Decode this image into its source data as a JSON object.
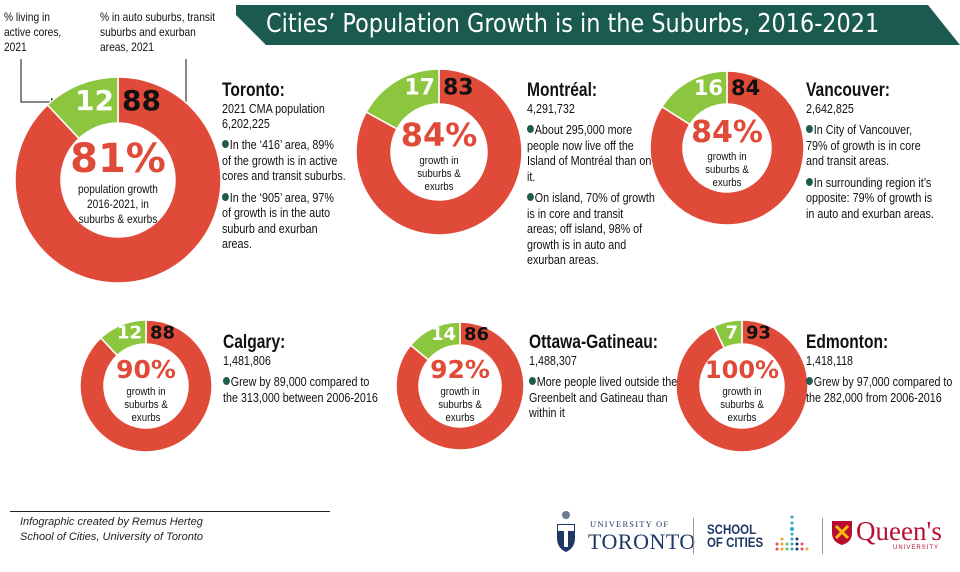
{
  "title": "Cities’ Population Growth is in the Suburbs, 2016-2021",
  "colors": {
    "banner": "#1b5b4f",
    "suburb_red": "#e04a38",
    "core_green": "#8cc63f",
    "bullet_dot": "#1f5b4e"
  },
  "annotations": {
    "core_label": [
      "% living in",
      "active cores,",
      "2021"
    ],
    "suburb_label": [
      "% in auto suburbs, transit",
      "suburbs and exurban",
      "areas, 2021"
    ]
  },
  "chart_data": {
    "type": "pie",
    "title": "Cities’ Population Growth is in the Suburbs, 2016-2021",
    "legend": [
      "% living in active cores, 2021",
      "% in auto suburbs, transit suburbs and exurban areas, 2021"
    ],
    "charts": [
      {
        "city": "Toronto",
        "core": 12,
        "suburban": 88,
        "growth_pct": "81%",
        "growth_caption": [
          "population growth",
          "2016-2021, in",
          "suburbs & exurbs"
        ]
      },
      {
        "city": "Montréal",
        "core": 17,
        "suburban": 83,
        "growth_pct": "84%",
        "growth_caption": [
          "growth in",
          "suburbs &",
          "exurbs"
        ]
      },
      {
        "city": "Vancouver",
        "core": 16,
        "suburban": 84,
        "growth_pct": "84%",
        "growth_caption": [
          "growth in",
          "suburbs &",
          "exurbs"
        ]
      },
      {
        "city": "Calgary",
        "core": 12,
        "suburban": 88,
        "growth_pct": "90%",
        "growth_caption": [
          "growth in",
          "suburbs &",
          "exurbs"
        ]
      },
      {
        "city": "Ottawa-Gatineau",
        "core": 14,
        "suburban": 86,
        "growth_pct": "92%",
        "growth_caption": [
          "growth in",
          "suburbs &",
          "exurbs"
        ]
      },
      {
        "city": "Edmonton",
        "core": 7,
        "suburban": 93,
        "growth_pct": "100%",
        "growth_caption": [
          "growth in",
          "suburbs &",
          "exurbs"
        ]
      }
    ]
  },
  "cities": {
    "toronto": {
      "name": "Toronto:",
      "sub": [
        "2021 CMA population",
        "6,202,225"
      ],
      "bullets": [
        [
          "In the ‘416’ area, 89%",
          "of the growth is in active",
          "cores  and transit suburbs."
        ],
        [
          "In the ‘905’ area, 97%",
          "of growth  is in the auto",
          "suburb and exurban",
          "areas."
        ]
      ]
    },
    "montreal": {
      "name": "Montréal:",
      "sub": [
        "4,291,732"
      ],
      "bullets": [
        [
          "About 295,000 more",
          "people now live off the",
          "Island of Montréal than on",
          "it."
        ],
        [
          "On island, 70% of growth",
          "is in core and transit",
          "areas; off island, 98% of",
          "growth is in auto and",
          "exurban areas."
        ]
      ]
    },
    "vancouver": {
      "name": "Vancouver:",
      "sub": [
        "2,642,825"
      ],
      "bullets": [
        [
          "In City of Vancouver,",
          "79% of growth is in core",
          "and transit areas."
        ],
        [
          "In surrounding region it’s",
          "opposite: 79% of growth  is",
          "in auto and exurban areas."
        ]
      ]
    },
    "calgary": {
      "name": "Calgary:",
      "sub": [
        "1,481,806"
      ],
      "bullets": [
        [
          "Grew by 89,000 compared to",
          "the 313,000  between  2006-2016"
        ]
      ]
    },
    "ottawa": {
      "name": "Ottawa-Gatineau:",
      "sub": [
        "1,488,307"
      ],
      "bullets": [
        [
          "More people lived outside the",
          "Greenbelt and Gatineau than",
          "within it"
        ]
      ]
    },
    "edmonton": {
      "name": "Edmonton:",
      "sub": [
        "1,418,118"
      ],
      "bullets": [
        [
          "Grew by 97,000 compared to",
          "the 282,000  from 2006-2016"
        ]
      ]
    }
  },
  "footer": {
    "credit": [
      "Infographic created by Remus Herteg",
      "School of Cities, University of Toronto"
    ],
    "logos": {
      "uoft_top": "UNIVERSITY OF",
      "uoft_main": "TORONTO",
      "soc_line1": "SCHOOL",
      "soc_line2": "OF CITIES",
      "queens_main": "Queen's",
      "queens_sub": "UNIVERSITY"
    }
  }
}
